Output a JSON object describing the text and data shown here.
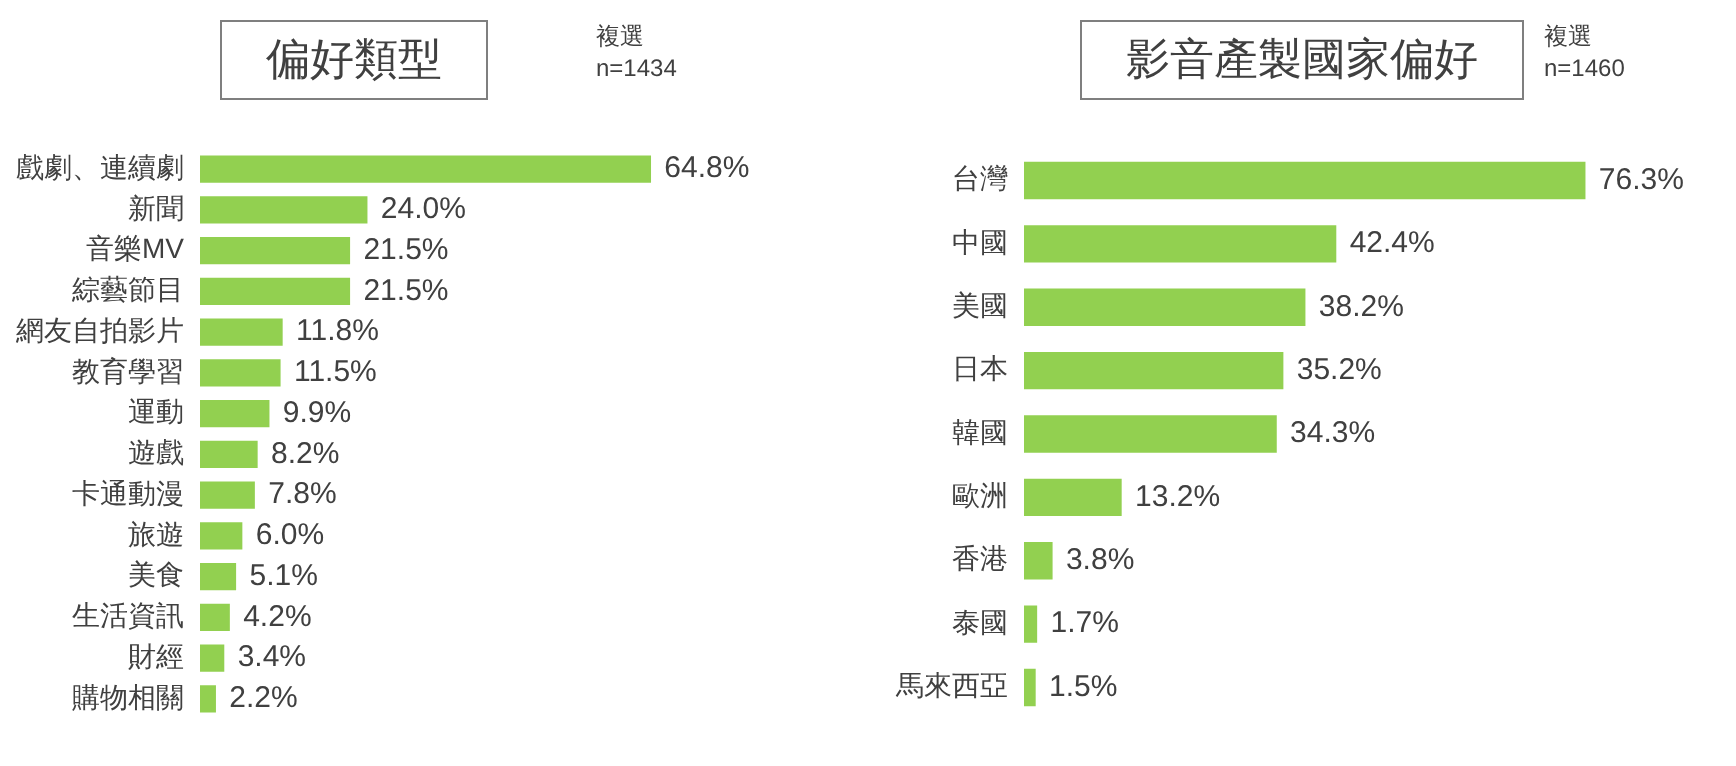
{
  "chart_data": [
    {
      "type": "bar",
      "orientation": "horizontal",
      "title": "偏好類型",
      "annotations": [
        "複選",
        "n=1434"
      ],
      "categories": [
        "戲劇、連續劇",
        "新聞",
        "音樂MV",
        "綜藝節目",
        "網友自拍影片",
        "教育學習",
        "運動",
        "遊戲",
        "卡通動漫",
        "旅遊",
        "美食",
        "生活資訊",
        "財經",
        "購物相關"
      ],
      "values": [
        64.8,
        24.0,
        21.5,
        21.5,
        11.8,
        11.5,
        9.9,
        8.2,
        7.8,
        6.0,
        5.1,
        4.2,
        3.4,
        2.2
      ],
      "value_labels": [
        "64.8%",
        "24.0%",
        "21.5%",
        "21.5%",
        "11.8%",
        "11.5%",
        "9.9%",
        "8.2%",
        "7.8%",
        "6.0%",
        "5.1%",
        "4.2%",
        "3.4%",
        "2.2%"
      ],
      "color": "#92d050",
      "data_labels": true,
      "legend": false,
      "tick_labels": "y"
    },
    {
      "type": "bar",
      "orientation": "horizontal",
      "title": "影音產製國家偏好",
      "annotations": [
        "複選",
        "n=1460"
      ],
      "categories": [
        "台灣",
        "中國",
        "美國",
        "日本",
        "韓國",
        "歐洲",
        "香港",
        "泰國",
        "馬來西亞"
      ],
      "values": [
        76.3,
        42.4,
        38.2,
        35.2,
        34.3,
        13.2,
        3.8,
        1.7,
        1.5
      ],
      "value_labels": [
        "76.3%",
        "42.4%",
        "38.2%",
        "35.2%",
        "34.3%",
        "13.2%",
        "3.8%",
        "1.7%",
        "1.5%"
      ],
      "color": "#92d050",
      "data_labels": true,
      "legend": false,
      "tick_labels": "y"
    }
  ]
}
